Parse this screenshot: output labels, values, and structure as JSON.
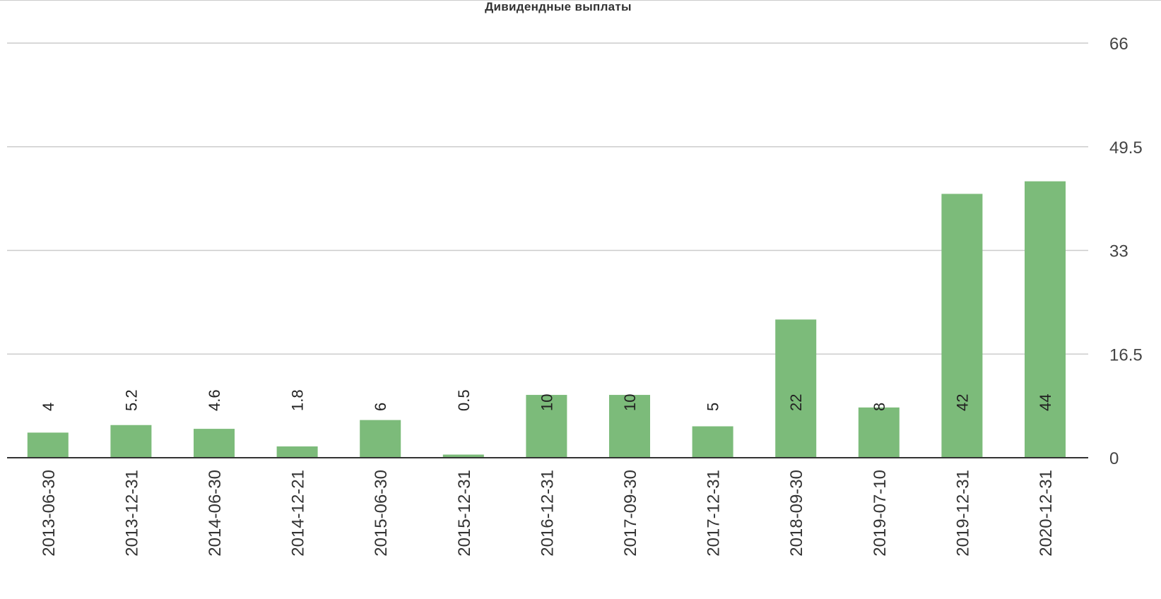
{
  "chart_data": {
    "type": "bar",
    "title": "Дивидендные выплаты",
    "xlabel": "",
    "ylabel": "",
    "categories": [
      "2013-06-30",
      "2013-12-31",
      "2014-06-30",
      "2014-12-21",
      "2015-06-30",
      "2015-12-31",
      "2016-12-31",
      "2017-09-30",
      "2017-12-31",
      "2018-09-30",
      "2019-07-10",
      "2019-12-31",
      "2020-12-31"
    ],
    "values": [
      4,
      5.2,
      4.6,
      1.8,
      6,
      0.5,
      10,
      10,
      5,
      22,
      8,
      42,
      44
    ],
    "value_labels": [
      "4",
      "5.2",
      "4.6",
      "1.8",
      "6",
      "0.5",
      "10",
      "10",
      "5",
      "22",
      "8",
      "42",
      "44"
    ],
    "ylim": [
      0,
      66
    ],
    "yticks": [
      0,
      16.5,
      33,
      49.5,
      66
    ],
    "ytick_labels": [
      "0",
      "16.5",
      "33",
      "49.5",
      "66"
    ],
    "y_axis_side": "right",
    "grid": true,
    "legend": "none",
    "colors": {
      "bar": "#7cbb7a",
      "grid": "#cccccc",
      "baseline": "#333333"
    }
  }
}
